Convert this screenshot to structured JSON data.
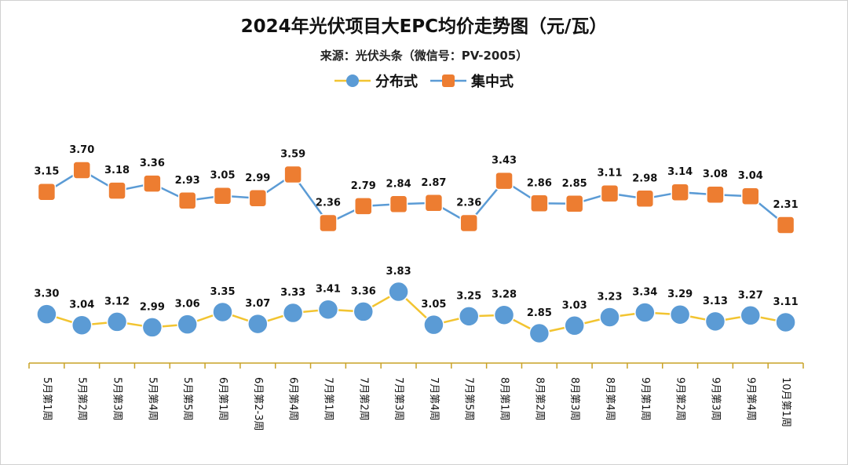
{
  "chart_data": {
    "type": "line",
    "title": "2024年光伏项目大EPC均价走势图（元/瓦）",
    "subtitle": "来源：光伏头条（微信号：PV-2005）",
    "legend_position": "top-center",
    "grid": false,
    "categories": [
      "5月第1周",
      "5月第2周",
      "5月第3周",
      "5月第4周",
      "5月第5周",
      "6月第1周",
      "6月第2-3周",
      "6月第4周",
      "7月第1周",
      "7月第2周",
      "7月第3周",
      "7月第4周",
      "7月第5周",
      "8月第1周",
      "8月第2周",
      "8月第3周",
      "8月第4周",
      "9月第1周",
      "9月第2周",
      "9月第3周",
      "9月第4周",
      "10月第1周"
    ],
    "series": [
      {
        "name": "分布式",
        "color": "#5b9bd5",
        "line_color": "#f2c431",
        "marker": "circle",
        "values": [
          3.3,
          3.04,
          3.12,
          2.99,
          3.06,
          3.35,
          3.07,
          3.33,
          3.41,
          3.36,
          3.83,
          3.05,
          3.25,
          3.28,
          2.85,
          3.03,
          3.23,
          3.34,
          3.29,
          3.13,
          3.27,
          3.11
        ],
        "labels": [
          "3.30",
          "3.04",
          "3.12",
          "2.99",
          "3.06",
          "3.35",
          "3.07",
          "3.33",
          "3.41",
          "3.36",
          "3.83",
          "3.05",
          "3.25",
          "3.28",
          "2.85",
          "3.03",
          "3.23",
          "3.34",
          "3.29",
          "3.13",
          "3.27",
          "3.11"
        ]
      },
      {
        "name": "集中式",
        "color": "#ed7d31",
        "line_color": "#5b9bd5",
        "marker": "square",
        "values": [
          3.15,
          3.7,
          3.18,
          3.36,
          2.93,
          3.05,
          2.99,
          3.59,
          2.36,
          2.79,
          2.84,
          2.87,
          2.36,
          3.43,
          2.86,
          2.85,
          3.11,
          2.98,
          3.14,
          3.08,
          3.04,
          2.31
        ],
        "labels": [
          "3.15",
          "3.70",
          "3.18",
          "3.36",
          "2.93",
          "3.05",
          "2.99",
          "3.59",
          "2.36",
          "2.79",
          "2.84",
          "2.87",
          "2.36",
          "3.43",
          "2.86",
          "2.85",
          "3.11",
          "2.98",
          "3.14",
          "3.08",
          "3.04",
          "2.31"
        ]
      }
    ]
  }
}
